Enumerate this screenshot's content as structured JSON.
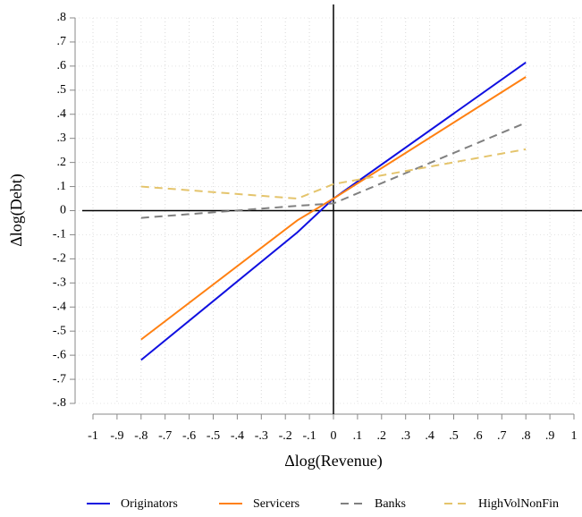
{
  "chart_data": {
    "type": "line",
    "x_label": "Δlog(Revenue)",
    "y_label": "Δlog(Debt)",
    "x": [
      -0.8,
      -0.15,
      0,
      0.8
    ],
    "series": [
      {
        "name": "Originators",
        "color": "#1010e0",
        "dash": false,
        "values": [
          -0.62,
          -0.09,
          0.05,
          0.615
        ]
      },
      {
        "name": "Servicers",
        "color": "#ff8012",
        "dash": false,
        "values": [
          -0.535,
          -0.04,
          0.05,
          0.555
        ]
      },
      {
        "name": "Banks",
        "color": "#808080",
        "dash": true,
        "values": [
          -0.03,
          0.02,
          0.03,
          0.365
        ]
      },
      {
        "name": "HighVolNonFin",
        "color": "#e4c46c",
        "dash": true,
        "values": [
          0.1,
          0.05,
          0.11,
          0.255
        ]
      }
    ],
    "xlim": [
      -1,
      1
    ],
    "xticks": [
      -1,
      {
        "value": -0.9,
        "label": "-.9"
      },
      {
        "value": -0.8,
        "label": "-.8"
      },
      {
        "value": -0.7,
        "label": "-.7"
      },
      {
        "value": -0.6,
        "label": "-.6"
      },
      {
        "value": -0.5,
        "label": "-.5"
      },
      {
        "value": -0.4,
        "label": "-.4"
      },
      {
        "value": -0.3,
        "label": "-.3"
      },
      {
        "value": -0.2,
        "label": "-.2"
      },
      {
        "value": -0.1,
        "label": "-.1"
      },
      0,
      {
        "value": 0.1,
        "label": ".1"
      },
      {
        "value": 0.2,
        "label": ".2"
      },
      {
        "value": 0.3,
        "label": ".3"
      },
      {
        "value": 0.4,
        "label": ".4"
      },
      {
        "value": 0.5,
        "label": ".5"
      },
      {
        "value": 0.6,
        "label": ".6"
      },
      {
        "value": 0.7,
        "label": ".7"
      },
      {
        "value": 0.8,
        "label": ".8"
      },
      {
        "value": 0.9,
        "label": ".9"
      },
      1
    ],
    "ylim": [
      -0.8,
      0.8
    ],
    "yticks": [
      {
        "value": -0.8,
        "label": "-.8"
      },
      {
        "value": -0.7,
        "label": "-.7"
      },
      {
        "value": -0.6,
        "label": "-.6"
      },
      {
        "value": -0.5,
        "label": "-.5"
      },
      {
        "value": -0.4,
        "label": "-.4"
      },
      {
        "value": -0.3,
        "label": "-.3"
      },
      {
        "value": -0.2,
        "label": "-.2"
      },
      {
        "value": -0.1,
        "label": "-.1"
      },
      0,
      {
        "value": 0.1,
        "label": ".1"
      },
      {
        "value": 0.2,
        "label": ".2"
      },
      {
        "value": 0.3,
        "label": ".3"
      },
      {
        "value": 0.4,
        "label": ".4"
      },
      {
        "value": 0.5,
        "label": ".5"
      },
      {
        "value": 0.6,
        "label": ".6"
      },
      {
        "value": 0.7,
        "label": ".7"
      },
      {
        "value": 0.8,
        "label": ".8"
      }
    ],
    "grid": true,
    "zero_lines": true,
    "legend": "bottom"
  }
}
